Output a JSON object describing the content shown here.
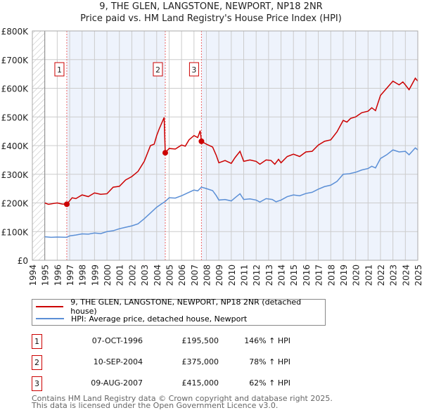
{
  "chart_data": {
    "type": "line",
    "title": "9, THE GLEN, LANGSTONE, NEWPORT, NP18 2NR",
    "subtitle": "Price paid vs. HM Land Registry's House Price Index (HPI)",
    "xlabel": "",
    "ylabel": "",
    "xlim": [
      1994,
      2025
    ],
    "ylim": [
      0,
      800000
    ],
    "x_ticks": [
      "1994",
      "1995",
      "1996",
      "1997",
      "1998",
      "1999",
      "2000",
      "2001",
      "2002",
      "2003",
      "2004",
      "2005",
      "2006",
      "2007",
      "2008",
      "2009",
      "2010",
      "2011",
      "2012",
      "2013",
      "2014",
      "2015",
      "2016",
      "2017",
      "2018",
      "2019",
      "2020",
      "2021",
      "2022",
      "2023",
      "2024",
      "2025"
    ],
    "y_ticks": [
      {
        "v": 0,
        "label": "£0"
      },
      {
        "v": 100000,
        "label": "£100K"
      },
      {
        "v": 200000,
        "label": "£200K"
      },
      {
        "v": 300000,
        "label": "£300K"
      },
      {
        "v": 400000,
        "label": "£400K"
      },
      {
        "v": 500000,
        "label": "£500K"
      },
      {
        "v": 600000,
        "label": "£600K"
      },
      {
        "v": 700000,
        "label": "£700K"
      },
      {
        "v": 800000,
        "label": "£800K"
      }
    ],
    "grid": true,
    "series": [
      {
        "name": "9, THE GLEN, LANGSTONE, NEWPORT, NP18 2NR (detached house)",
        "color": "#cc0000",
        "points": [
          [
            1995,
            200000
          ],
          [
            1995.3,
            195000
          ],
          [
            1995.7,
            198000
          ],
          [
            1996,
            200000
          ],
          [
            1996.4,
            196000
          ],
          [
            1996.77,
            195500
          ],
          [
            1997.2,
            218000
          ],
          [
            1997.5,
            215000
          ],
          [
            1998,
            228000
          ],
          [
            1998.5,
            222000
          ],
          [
            1999,
            235000
          ],
          [
            1999.5,
            230000
          ],
          [
            2000,
            232000
          ],
          [
            2000.5,
            255000
          ],
          [
            2001,
            258000
          ],
          [
            2001.5,
            280000
          ],
          [
            2002,
            292000
          ],
          [
            2002.5,
            310000
          ],
          [
            2003,
            345000
          ],
          [
            2003.5,
            400000
          ],
          [
            2003.8,
            405000
          ],
          [
            2004,
            435000
          ],
          [
            2004.2,
            458000
          ],
          [
            2004.6,
            498000
          ],
          [
            2004.69,
            375000
          ],
          [
            2005,
            390000
          ],
          [
            2005.5,
            388000
          ],
          [
            2006,
            402000
          ],
          [
            2006.3,
            398000
          ],
          [
            2006.6,
            420000
          ],
          [
            2007,
            435000
          ],
          [
            2007.3,
            428000
          ],
          [
            2007.5,
            452000
          ],
          [
            2007.6,
            415000
          ],
          [
            2008,
            405000
          ],
          [
            2008.5,
            395000
          ],
          [
            2008.8,
            365000
          ],
          [
            2009,
            340000
          ],
          [
            2009.5,
            348000
          ],
          [
            2010,
            338000
          ],
          [
            2010.3,
            358000
          ],
          [
            2010.7,
            380000
          ],
          [
            2011,
            345000
          ],
          [
            2011.5,
            350000
          ],
          [
            2012,
            345000
          ],
          [
            2012.3,
            335000
          ],
          [
            2012.8,
            350000
          ],
          [
            2013.2,
            348000
          ],
          [
            2013.5,
            335000
          ],
          [
            2013.8,
            352000
          ],
          [
            2014,
            340000
          ],
          [
            2014.5,
            362000
          ],
          [
            2015,
            370000
          ],
          [
            2015.5,
            362000
          ],
          [
            2016,
            378000
          ],
          [
            2016.5,
            380000
          ],
          [
            2017,
            402000
          ],
          [
            2017.5,
            415000
          ],
          [
            2018,
            420000
          ],
          [
            2018.5,
            448000
          ],
          [
            2019,
            488000
          ],
          [
            2019.3,
            482000
          ],
          [
            2019.6,
            495000
          ],
          [
            2020,
            500000
          ],
          [
            2020.5,
            515000
          ],
          [
            2021,
            520000
          ],
          [
            2021.3,
            532000
          ],
          [
            2021.6,
            522000
          ],
          [
            2022,
            575000
          ],
          [
            2022.5,
            600000
          ],
          [
            2023,
            625000
          ],
          [
            2023.5,
            612000
          ],
          [
            2023.8,
            622000
          ],
          [
            2024,
            612000
          ],
          [
            2024.3,
            595000
          ],
          [
            2024.8,
            635000
          ],
          [
            2025,
            625000
          ]
        ]
      },
      {
        "name": "HPI: Average price, detached house, Newport",
        "color": "#5b8fd6",
        "points": [
          [
            1995,
            82000
          ],
          [
            1995.5,
            80000
          ],
          [
            1996,
            81000
          ],
          [
            1996.77,
            80000
          ],
          [
            1997,
            85000
          ],
          [
            1997.5,
            88000
          ],
          [
            1998,
            92000
          ],
          [
            1998.5,
            91000
          ],
          [
            1999,
            95000
          ],
          [
            1999.5,
            93000
          ],
          [
            2000,
            100000
          ],
          [
            2000.5,
            103000
          ],
          [
            2001,
            110000
          ],
          [
            2001.5,
            115000
          ],
          [
            2002,
            120000
          ],
          [
            2002.5,
            127000
          ],
          [
            2003,
            145000
          ],
          [
            2003.5,
            165000
          ],
          [
            2004,
            185000
          ],
          [
            2004.5,
            200000
          ],
          [
            2004.69,
            205000
          ],
          [
            2005,
            218000
          ],
          [
            2005.5,
            217000
          ],
          [
            2006,
            225000
          ],
          [
            2006.5,
            235000
          ],
          [
            2007,
            245000
          ],
          [
            2007.3,
            242000
          ],
          [
            2007.6,
            255000
          ],
          [
            2008,
            250000
          ],
          [
            2008.5,
            243000
          ],
          [
            2008.8,
            225000
          ],
          [
            2009,
            210000
          ],
          [
            2009.5,
            212000
          ],
          [
            2010,
            207000
          ],
          [
            2010.3,
            218000
          ],
          [
            2010.7,
            232000
          ],
          [
            2011,
            212000
          ],
          [
            2011.5,
            214000
          ],
          [
            2012,
            210000
          ],
          [
            2012.3,
            203000
          ],
          [
            2012.8,
            215000
          ],
          [
            2013.3,
            212000
          ],
          [
            2013.6,
            204000
          ],
          [
            2014,
            210000
          ],
          [
            2014.5,
            222000
          ],
          [
            2015,
            228000
          ],
          [
            2015.5,
            225000
          ],
          [
            2016,
            233000
          ],
          [
            2016.5,
            237000
          ],
          [
            2017,
            248000
          ],
          [
            2017.5,
            257000
          ],
          [
            2018,
            262000
          ],
          [
            2018.5,
            275000
          ],
          [
            2019,
            300000
          ],
          [
            2019.5,
            302000
          ],
          [
            2020,
            307000
          ],
          [
            2020.5,
            315000
          ],
          [
            2021,
            320000
          ],
          [
            2021.3,
            328000
          ],
          [
            2021.6,
            322000
          ],
          [
            2022,
            355000
          ],
          [
            2022.5,
            368000
          ],
          [
            2023,
            385000
          ],
          [
            2023.5,
            378000
          ],
          [
            2024,
            380000
          ],
          [
            2024.3,
            368000
          ],
          [
            2024.8,
            392000
          ],
          [
            2025,
            385000
          ]
        ]
      }
    ],
    "sales": [
      {
        "id": "1",
        "x": 1996.77,
        "price": 195500
      },
      {
        "id": "2",
        "x": 2004.69,
        "price": 375000
      },
      {
        "id": "3",
        "x": 2007.6,
        "price": 415000
      }
    ],
    "shaded_ranges": [
      [
        1996.77,
        2004.69
      ],
      [
        2007.6,
        2025
      ]
    ],
    "hatched_range": [
      1994,
      1995
    ]
  },
  "title_line1": "9, THE GLEN, LANGSTONE, NEWPORT, NP18 2NR",
  "title_line2": "Price paid vs. HM Land Registry's House Price Index (HPI)",
  "legend": {
    "property": "9, THE GLEN, LANGSTONE, NEWPORT, NP18 2NR (detached house)",
    "hpi": "HPI: Average price, detached house, Newport"
  },
  "transactions": [
    {
      "id": "1",
      "date": "07-OCT-1996",
      "price": "£195,500",
      "hpi": "146% ↑ HPI"
    },
    {
      "id": "2",
      "date": "10-SEP-2004",
      "price": "£375,000",
      "hpi": "78% ↑ HPI"
    },
    {
      "id": "3",
      "date": "09-AUG-2007",
      "price": "£415,000",
      "hpi": "62% ↑ HPI"
    }
  ],
  "footer": {
    "line1": "Contains HM Land Registry data © Crown copyright and database right 2025.",
    "line2": "This data is licensed under the Open Government Licence v3.0."
  }
}
